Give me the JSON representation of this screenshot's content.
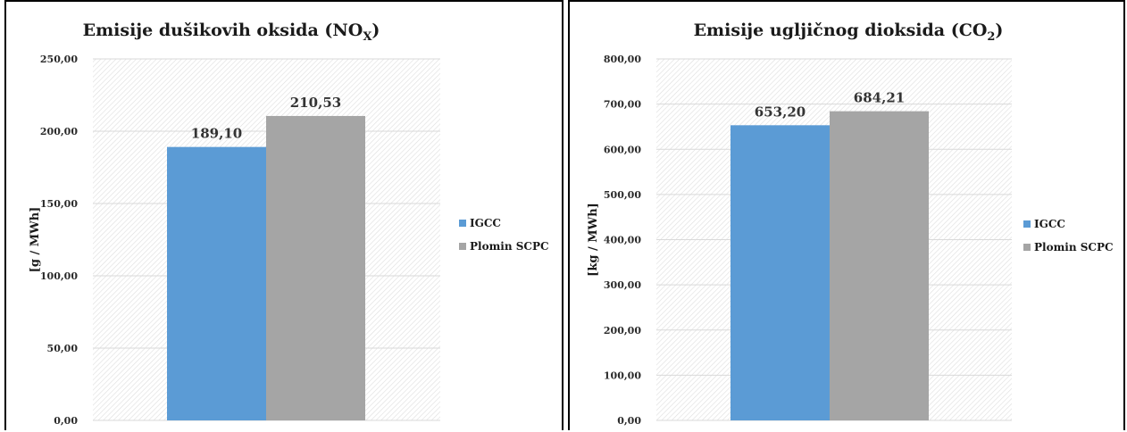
{
  "chart_data": [
    {
      "type": "bar",
      "title": "Emisije dušikovih oksida (NO",
      "title_sub": "X",
      "title_end": ")",
      "ylabel": "[g / MWh]",
      "xlabel": "",
      "ylim": [
        0,
        250
      ],
      "yticks": [
        "0,00",
        "50,00",
        "100,00",
        "150,00",
        "200,00",
        "250,00"
      ],
      "grid": true,
      "legend_position": "right",
      "series": [
        {
          "name": "IGCC",
          "value": 189.1,
          "label": "189,10",
          "color": "#5b9bd5"
        },
        {
          "name": "Plomin SCPC",
          "value": 210.53,
          "label": "210,53",
          "color": "#a5a5a5"
        }
      ]
    },
    {
      "type": "bar",
      "title": "Emisije ugljičnog dioksida (CO",
      "title_sub": "2",
      "title_end": ")",
      "ylabel": "[kg / MWh]",
      "xlabel": "",
      "ylim": [
        0,
        800
      ],
      "yticks": [
        "0,00",
        "100,00",
        "200,00",
        "300,00",
        "400,00",
        "500,00",
        "600,00",
        "700,00",
        "800,00"
      ],
      "grid": true,
      "legend_position": "right",
      "series": [
        {
          "name": "IGCC",
          "value": 653.2,
          "label": "653,20",
          "color": "#5b9bd5"
        },
        {
          "name": "Plomin SCPC",
          "value": 684.21,
          "label": "684,21",
          "color": "#a5a5a5"
        }
      ]
    }
  ]
}
